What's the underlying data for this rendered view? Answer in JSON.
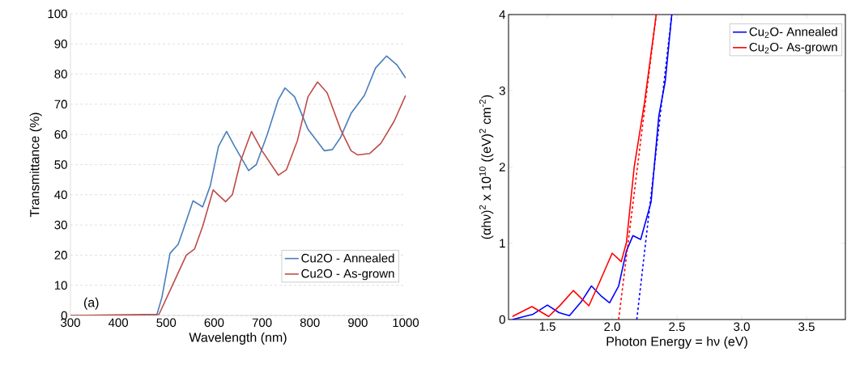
{
  "chart_data": [
    {
      "type": "line",
      "xlabel": "Wavelength (nm)",
      "ylabel": "Transmittance (%)",
      "xlim": [
        300,
        1000
      ],
      "ylim": [
        0,
        100
      ],
      "xticks": [
        300,
        400,
        500,
        600,
        700,
        800,
        900,
        1000
      ],
      "yticks": [
        0,
        10,
        20,
        30,
        40,
        50,
        60,
        70,
        80,
        90,
        100
      ],
      "grid": "y",
      "legend": "bottom right",
      "annotations": [
        "(a)"
      ],
      "series": [
        {
          "name": "Cu2O - Annealed",
          "color": "#4a7ebb",
          "x": [
            300,
            480,
            491,
            508,
            525,
            536,
            556,
            576,
            592,
            609,
            626,
            643,
            672,
            688,
            711,
            734,
            748,
            768,
            796,
            830,
            847,
            864,
            886,
            900,
            914,
            937,
            960,
            982,
            1000
          ],
          "values": [
            0,
            0,
            6,
            20.6,
            23.6,
            28.6,
            38,
            36,
            43,
            56,
            61,
            56,
            48,
            50,
            60,
            71.5,
            75.4,
            72.5,
            61.7,
            54.6,
            55,
            59,
            67,
            70,
            73,
            82,
            86,
            83,
            78.7
          ]
        },
        {
          "name": "Cu2O - As-grown",
          "color": "#be4b48",
          "x": [
            300,
            485,
            513,
            542,
            559,
            576,
            598,
            624,
            638,
            655,
            678,
            700,
            734,
            751,
            774,
            796,
            816,
            836,
            864,
            886,
            900,
            925,
            948,
            976,
            1000
          ],
          "values": [
            0,
            0.4,
            10,
            20,
            22,
            29.5,
            41.6,
            37.7,
            40,
            51,
            61,
            54.6,
            46.5,
            48.3,
            58,
            72.5,
            77.4,
            73.8,
            61.7,
            54.6,
            53.2,
            53.7,
            57,
            64.4,
            73
          ]
        }
      ]
    },
    {
      "type": "line",
      "xlabel": "Photon Energy = hν (eV)",
      "ylabel": "(αhν)$^{2}$ x 10$^{10}$ ((eV)$^{2}$ cm$^{-2}$)",
      "xlim": [
        1.2,
        3.8
      ],
      "ylim": [
        0,
        4
      ],
      "xticks": [
        1.5,
        {
          "value": 2,
          "label": "2.0"
        },
        2.5,
        {
          "value": 3,
          "label": "3.0"
        },
        3.5
      ],
      "yticks": [
        0,
        1,
        2,
        3,
        4
      ],
      "legend": "top right",
      "series": [
        {
          "name": "Cu$_{2}$O- Annealed",
          "color": "#0000ff",
          "x": [
            1.23,
            1.39,
            1.5,
            1.59,
            1.67,
            1.76,
            1.84,
            1.92,
            1.98,
            2.05,
            2.11,
            2.16,
            2.22,
            2.3,
            2.36,
            2.41,
            2.46
          ],
          "values": [
            0,
            0.07,
            0.19,
            0.09,
            0.05,
            0.23,
            0.44,
            0.3,
            0.22,
            0.44,
            0.9,
            1.1,
            1.05,
            1.54,
            2.67,
            3.13,
            4
          ]
        },
        {
          "name": "Cu$_{2}$O- As-grown",
          "color": "#ff0000",
          "x": [
            1.23,
            1.38,
            1.51,
            1.6,
            1.7,
            1.82,
            1.9,
            2.0,
            2.07,
            2.11,
            2.17,
            2.25,
            2.34
          ],
          "values": [
            0.04,
            0.17,
            0.04,
            0.19,
            0.38,
            0.18,
            0.48,
            0.87,
            0.76,
            1.01,
            2,
            2.85,
            4
          ]
        },
        {
          "color": "#0000ff",
          "line_style": "dashed",
          "x": [
            2.19,
            2.46
          ],
          "values": [
            0,
            4
          ]
        },
        {
          "color": "#ff0000",
          "line_style": "dashed",
          "x": [
            2.05,
            2.34
          ],
          "values": [
            0,
            4
          ]
        }
      ]
    }
  ]
}
